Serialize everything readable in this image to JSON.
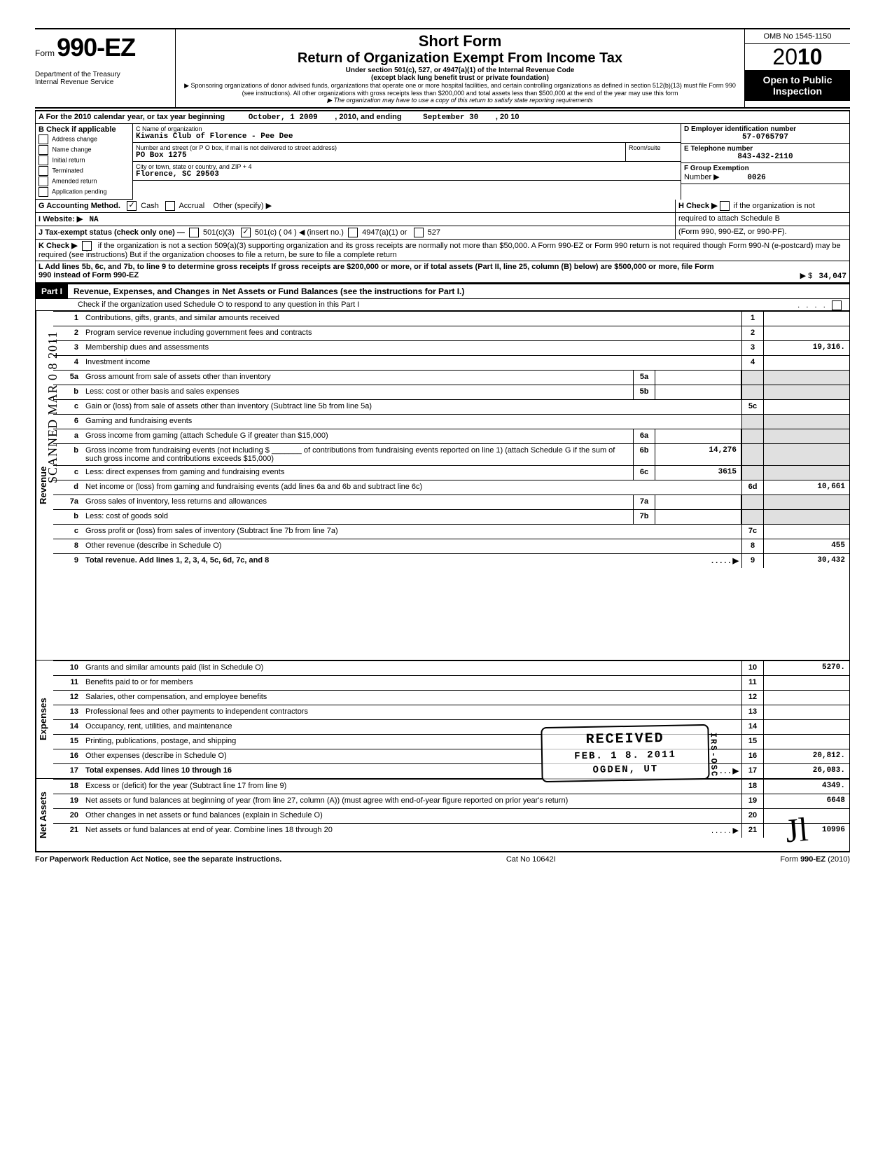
{
  "side_stamp": "SCANNED MAR 0 8 2011",
  "form": {
    "prefix": "Form",
    "number": "990-EZ",
    "dept": "Department of the Treasury\nInternal Revenue Service"
  },
  "title": {
    "main": "Short Form",
    "sub": "Return of Organization Exempt From Income Tax",
    "line1": "Under section 501(c), 527, or 4947(a)(1) of the Internal Revenue Code",
    "line2": "(except black lung benefit trust or private foundation)",
    "line3": "▶ Sponsoring organizations of donor advised funds, organizations that operate one or more hospital facilities, and certain controlling organizations as defined in section 512(b)(13) must file Form 990 (see instructions). All other organizations with gross receipts less than $200,000 and total assets less than $500,000 at the end of the year may use this form",
    "line4": "▶ The organization may have to use a copy of this return to satisfy state reporting requirements"
  },
  "omb": "OMB No 1545-1150",
  "year_prefix": "20",
  "year_suffix": "10",
  "inspection": "Open to Public Inspection",
  "section_a": {
    "header": "A  For the 2010 calendar year, or tax year beginning",
    "begin_date": "October, 1 2009",
    "mid": ", 2010, and ending",
    "end_date": "September 30",
    "end_year": ", 20   10",
    "b_label": "B  Check if applicable",
    "checks": [
      "Address change",
      "Name change",
      "Initial return",
      "Terminated",
      "Amended return",
      "Application pending"
    ],
    "c_label": "C  Name of organization",
    "c_value": "Kiwanis Club of Florence - Pee Dee",
    "c_addr_label": "Number and street (or P O  box, if mail is not delivered to street address)",
    "c_room": "Room/suite",
    "c_addr": "PO Box 1275",
    "c_city_label": "City or town, state or country, and ZIP + 4",
    "c_city": "Florence, SC  29503",
    "d_label": "D Employer identification number",
    "d_value": "57-0765797",
    "e_label": "E  Telephone number",
    "e_value": "843-432-2110",
    "f_label": "F  Group Exemption",
    "f_number": "Number ▶",
    "f_value": "0026",
    "g_label": "G  Accounting Method.",
    "g_cash": "Cash",
    "g_accrual": "Accrual",
    "g_other": "Other (specify) ▶",
    "h_label": "H  Check ▶",
    "h_text": "if the organization is not",
    "h_text2": "required to attach Schedule B",
    "h_text3": "(Form 990, 990-EZ, or 990-PF).",
    "i_label": "I   Website: ▶",
    "i_value": "NA",
    "j_label": "J  Tax-exempt status (check only one) —",
    "j_501c3": "501(c)(3)",
    "j_501c": "501(c) (  04  ) ◀ (insert no.)",
    "j_4947": "4947(a)(1) or",
    "j_527": "527",
    "k_label": "K  Check ▶",
    "k_text": "if the organization is not a section 509(a)(3) supporting organization and its gross receipts are normally not more than $50,000. A Form 990-EZ or Form 990 return is not required though Form 990-N (e-postcard) may be required (see instructions)  But if the organization chooses to file a return, be sure to file a complete return",
    "l_text": "L  Add lines 5b, 6c, and 7b, to line 9 to determine gross receipts  If gross receipts are $200,000 or more, or if total assets (Part II, line  25, column (B) below) are $500,000 or more, file Form 990 instead of Form 990-EZ",
    "l_arrow": "▶  $",
    "l_value": "34,047"
  },
  "part1": {
    "label": "Part I",
    "title": "Revenue, Expenses, and Changes in Net Assets or Fund Balances (see the instructions for Part I.)",
    "check_text": "Check if the organization used Schedule O to respond to any question in this Part I"
  },
  "categories": {
    "revenue": "Revenue",
    "expenses": "Expenses",
    "netassets": "Net Assets"
  },
  "lines": [
    {
      "n": "1",
      "desc": "Contributions, gifts, grants, and similar amounts received",
      "box": "1",
      "val": ""
    },
    {
      "n": "2",
      "desc": "Program service revenue including government fees and contracts",
      "box": "2",
      "val": ""
    },
    {
      "n": "3",
      "desc": "Membership dues and assessments",
      "box": "3",
      "val": "19,316."
    },
    {
      "n": "4",
      "desc": "Investment income",
      "box": "4",
      "val": ""
    },
    {
      "n": "5a",
      "desc": "Gross amount from sale of assets other than inventory",
      "mini": "5a",
      "minival": ""
    },
    {
      "n": "b",
      "desc": "Less: cost or other basis and sales expenses",
      "mini": "5b",
      "minival": ""
    },
    {
      "n": "c",
      "desc": "Gain or (loss) from sale of assets other than inventory (Subtract line 5b from line 5a)",
      "box": "5c",
      "val": ""
    },
    {
      "n": "6",
      "desc": "Gaming and fundraising events"
    },
    {
      "n": "a",
      "desc": "Gross income from gaming (attach Schedule G if greater than $15,000)",
      "mini": "6a",
      "minival": ""
    },
    {
      "n": "b",
      "desc": "Gross income from fundraising events (not including $ _______ of contributions from fundraising events reported on line 1) (attach Schedule G if the sum of such gross income and contributions exceeds $15,000)",
      "mini": "6b",
      "minival": "14,276"
    },
    {
      "n": "c",
      "desc": "Less: direct expenses from gaming and fundraising events",
      "mini": "6c",
      "minival": "3615"
    },
    {
      "n": "d",
      "desc": "Net income or (loss) from gaming and fundraising events (add lines 6a and 6b and subtract line 6c)",
      "box": "6d",
      "val": "10,661"
    },
    {
      "n": "7a",
      "desc": "Gross sales of inventory, less returns and allowances",
      "mini": "7a",
      "minival": ""
    },
    {
      "n": "b",
      "desc": "Less: cost of goods sold",
      "mini": "7b",
      "minival": ""
    },
    {
      "n": "c",
      "desc": "Gross profit or (loss) from sales of inventory (Subtract line 7b from line 7a)",
      "box": "7c",
      "val": ""
    },
    {
      "n": "8",
      "desc": "Other revenue (describe in Schedule O)",
      "box": "8",
      "val": "455"
    },
    {
      "n": "9",
      "desc": "Total revenue. Add lines 1, 2, 3, 4, 5c, 6d, 7c, and 8",
      "box": "9",
      "val": "30,432",
      "bold": true,
      "arrow": true
    },
    {
      "n": "10",
      "desc": "Grants and similar amounts paid (list in Schedule O)",
      "box": "10",
      "val": "5270."
    },
    {
      "n": "11",
      "desc": "Benefits paid to or for members",
      "box": "11",
      "val": ""
    },
    {
      "n": "12",
      "desc": "Salaries, other compensation, and employee benefits",
      "box": "12",
      "val": ""
    },
    {
      "n": "13",
      "desc": "Professional fees and other payments to independent contractors",
      "box": "13",
      "val": ""
    },
    {
      "n": "14",
      "desc": "Occupancy, rent, utilities, and maintenance",
      "box": "14",
      "val": ""
    },
    {
      "n": "15",
      "desc": "Printing, publications, postage, and shipping",
      "box": "15",
      "val": ""
    },
    {
      "n": "16",
      "desc": "Other expenses (describe in Schedule O)",
      "box": "16",
      "val": "20,812."
    },
    {
      "n": "17",
      "desc": "Total expenses. Add lines 10 through 16",
      "box": "17",
      "val": "26,083.",
      "bold": true,
      "arrow": true
    },
    {
      "n": "18",
      "desc": "Excess or (deficit) for the year (Subtract line 17 from line 9)",
      "box": "18",
      "val": "4349."
    },
    {
      "n": "19",
      "desc": "Net assets or fund balances at beginning of year (from line 27, column (A)) (must agree with end-of-year figure reported on prior year's return)",
      "box": "19",
      "val": "6648"
    },
    {
      "n": "20",
      "desc": "Other changes in net assets or fund balances (explain in Schedule O)",
      "box": "20",
      "val": ""
    },
    {
      "n": "21",
      "desc": "Net assets or fund balances at end of year. Combine lines 18 through 20",
      "box": "21",
      "val": "10996",
      "arrow": true
    }
  ],
  "stamp": {
    "received": "RECEIVED",
    "date": "FEB. 1 8. 2011",
    "loc": "OGDEN, UT",
    "side": "IRS-OSC"
  },
  "footer": {
    "left": "For Paperwork Reduction Act Notice, see the separate instructions.",
    "mid": "Cat No 10642I",
    "right": "Form 990-EZ (2010)"
  }
}
